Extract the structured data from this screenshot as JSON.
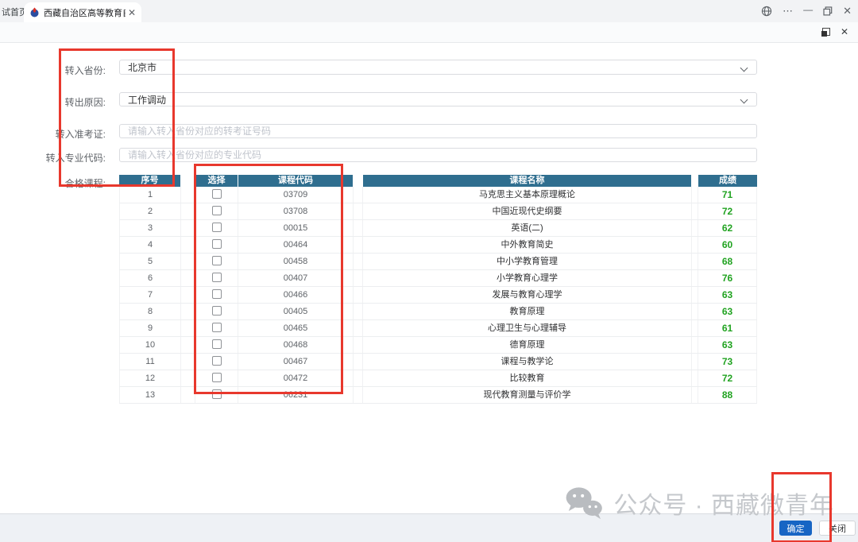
{
  "browser": {
    "background_tab_label": "试首页",
    "active_tab_title": "西藏自治区高等教育自学考试",
    "icons": {
      "more": "⋯",
      "minimize": "—",
      "close": "✕",
      "tab_close": "✕"
    }
  },
  "modal_bar": {
    "close_icon": "✕"
  },
  "form": {
    "fields": [
      {
        "label": "转入省份:",
        "type": "select",
        "value": "北京市"
      },
      {
        "label": "转出原因:",
        "type": "select",
        "value": "工作调动"
      },
      {
        "label": "转入准考证:",
        "type": "input",
        "placeholder": "请输入转入省份对应的转考证号码"
      },
      {
        "label": "转入专业代码:",
        "type": "input",
        "placeholder": "请输入转入省份对应的专业代码"
      }
    ],
    "courses_label": "合格课程:"
  },
  "table": {
    "headers": [
      "序号",
      "选择",
      "课程代码",
      "课程名称",
      "成绩"
    ],
    "rows": [
      {
        "no": "1",
        "code": "03709",
        "name": "马克思主义基本原理概论",
        "score": "71"
      },
      {
        "no": "2",
        "code": "03708",
        "name": "中国近现代史纲要",
        "score": "72"
      },
      {
        "no": "3",
        "code": "00015",
        "name": "英语(二)",
        "score": "62"
      },
      {
        "no": "4",
        "code": "00464",
        "name": "中外教育简史",
        "score": "60"
      },
      {
        "no": "5",
        "code": "00458",
        "name": "中小学教育管理",
        "score": "68"
      },
      {
        "no": "6",
        "code": "00407",
        "name": "小学教育心理学",
        "score": "76"
      },
      {
        "no": "7",
        "code": "00466",
        "name": "发展与教育心理学",
        "score": "63"
      },
      {
        "no": "8",
        "code": "00405",
        "name": "教育原理",
        "score": "63"
      },
      {
        "no": "9",
        "code": "00465",
        "name": "心理卫生与心理辅导",
        "score": "61"
      },
      {
        "no": "10",
        "code": "00468",
        "name": "德育原理",
        "score": "63"
      },
      {
        "no": "11",
        "code": "00467",
        "name": "课程与教学论",
        "score": "73"
      },
      {
        "no": "12",
        "code": "00472",
        "name": "比较教育",
        "score": "72"
      },
      {
        "no": "13",
        "code": "06231",
        "name": "现代教育测量与评价学",
        "score": "88"
      }
    ]
  },
  "watermark": {
    "text": "公众号 · 西藏微青年"
  },
  "footer": {
    "confirm_label": "确定",
    "close_label": "关闭"
  },
  "colors": {
    "table_header_bg": "#2f6e8f",
    "score_green": "#21a321",
    "annotation_red": "#e8382d",
    "confirm_blue": "#1765c4"
  }
}
